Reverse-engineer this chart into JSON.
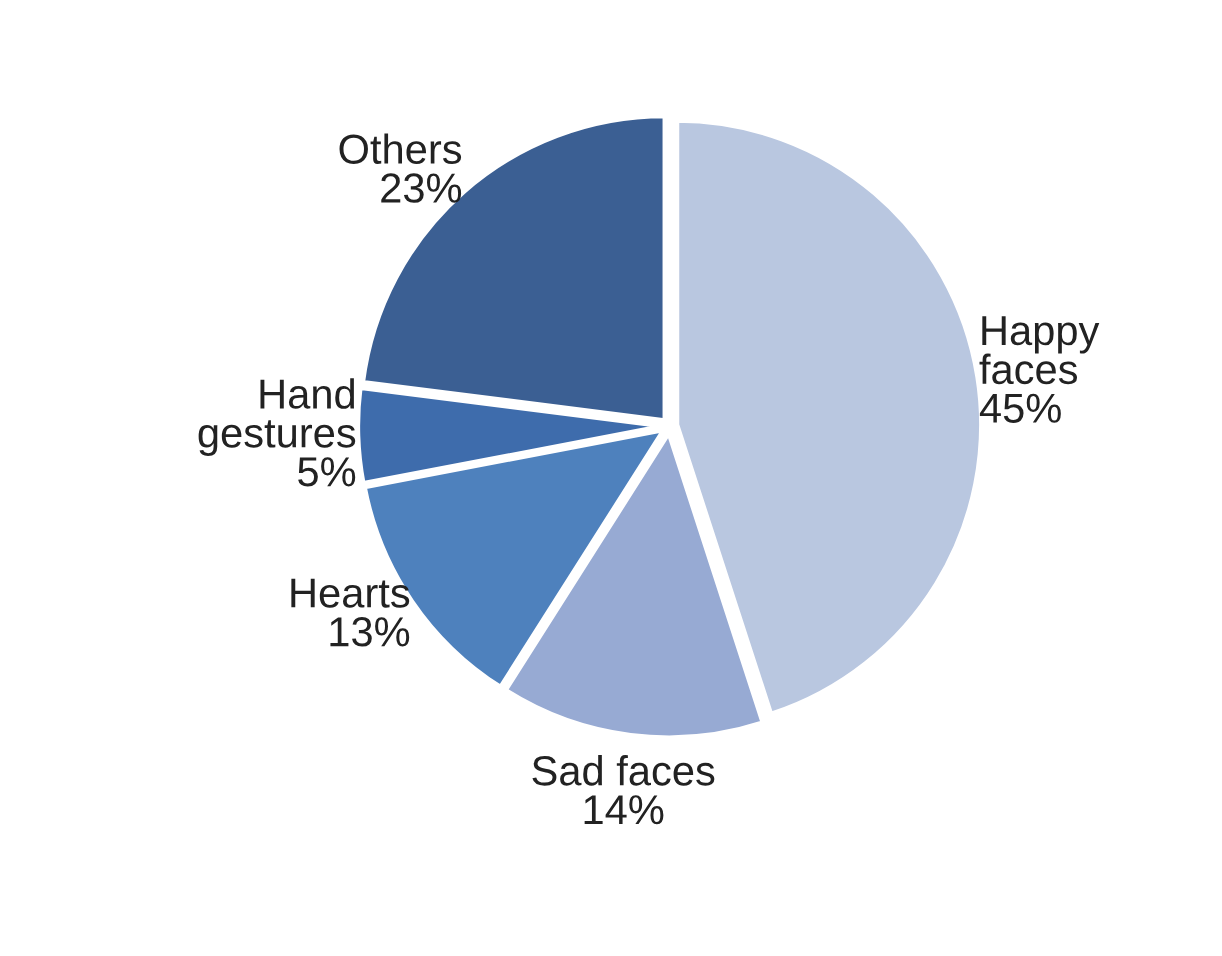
{
  "chart_data": {
    "type": "pie",
    "categories": [
      "Happy\nfaces",
      "Sad faces",
      "Hearts",
      "Hand\ngestures",
      "Others"
    ],
    "values": [
      45,
      14,
      13,
      5,
      23
    ],
    "value_labels": [
      "45%",
      "14%",
      "13%",
      "5%",
      "23%"
    ],
    "colors": [
      "#b9c7e0",
      "#97aad3",
      "#4e81bd",
      "#3e6cac",
      "#3b5f93"
    ]
  }
}
